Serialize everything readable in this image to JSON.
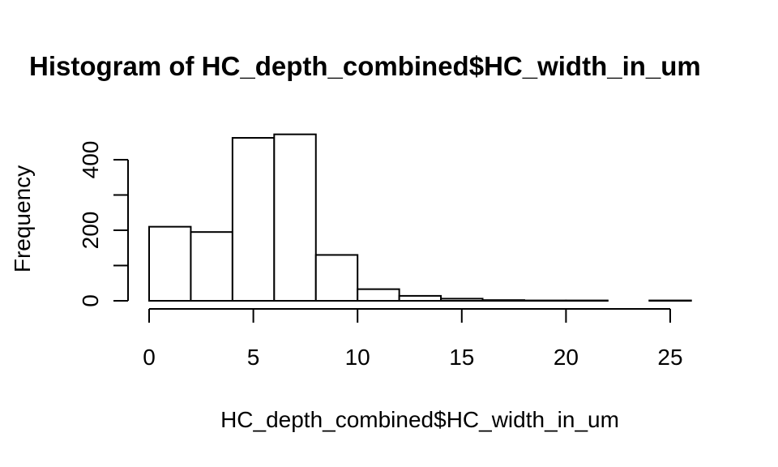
{
  "chart_data": {
    "type": "bar",
    "title": "Histogram of HC_depth_combined$HC_width_in_um",
    "xlabel": "HC_depth_combined$HC_width_in_um",
    "ylabel": "Frequency",
    "bin_edges": [
      0,
      2,
      4,
      6,
      8,
      10,
      12,
      14,
      16,
      18,
      20,
      22,
      24,
      26
    ],
    "values": [
      210,
      195,
      462,
      472,
      130,
      33,
      14,
      6,
      2,
      1,
      1,
      0,
      1
    ],
    "xlim": [
      0,
      26
    ],
    "ylim": [
      0,
      472
    ],
    "x_ticks": [
      0,
      5,
      10,
      15,
      20,
      25
    ],
    "x_tick_labels": [
      "0",
      "5",
      "10",
      "15",
      "20",
      "25"
    ],
    "y_ticks": [
      0,
      100,
      200,
      300,
      400
    ],
    "y_tick_labels": [
      "0",
      "",
      "200",
      "",
      "400"
    ],
    "bar_fill": "#ffffff",
    "bar_stroke": "#000000",
    "grid": false
  }
}
